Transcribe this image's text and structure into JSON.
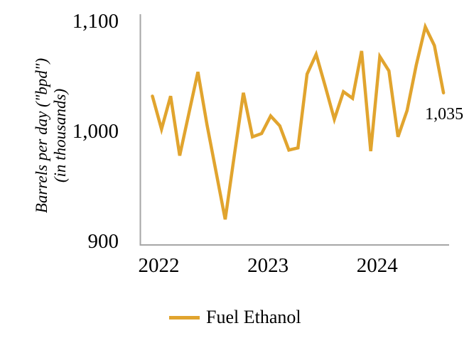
{
  "chart_data": {
    "type": "line",
    "title": "",
    "ylabel_line1": "Barrels per day (\"bpd\")",
    "ylabel_line2": "(in thousands)",
    "x": [
      "Jan 2022",
      "Feb 2022",
      "Mar 2022",
      "Apr 2022",
      "May 2022",
      "Jun 2022",
      "Jul 2022",
      "Aug 2022",
      "Sep 2022",
      "Oct 2022",
      "Nov 2022",
      "Dec 2022",
      "Jan 2023",
      "Feb 2023",
      "Mar 2023",
      "Apr 2023",
      "May 2023",
      "Jun 2023",
      "Jul 2023",
      "Aug 2023",
      "Sep 2023",
      "Oct 2023",
      "Nov 2023",
      "Dec 2023",
      "Jan 2024",
      "Feb 2024",
      "Mar 2024",
      "Apr 2024",
      "May 2024",
      "Jun 2024",
      "Jul 2024",
      "Aug 2024",
      "Sep 2024"
    ],
    "series": [
      {
        "name": "Fuel Ethanol",
        "color": "#E1A42E",
        "values": [
          1032,
          1002,
          1032,
          978,
          1016,
          1054,
          1006,
          963,
          920,
          978,
          1035,
          995,
          998,
          1014,
          1005,
          983,
          985,
          1052,
          1070,
          1041,
          1011,
          1036,
          1030,
          1073,
          982,
          1068,
          1055,
          995,
          1019,
          1060,
          1095,
          1078,
          1035
        ]
      }
    ],
    "y_ticks": [
      {
        "value": 900,
        "label": "900"
      },
      {
        "value": 1000,
        "label": "1,000"
      },
      {
        "value": 1100,
        "label": "1,100"
      }
    ],
    "x_ticks": [
      {
        "label": "2022",
        "month_index": 0
      },
      {
        "label": "2023",
        "month_index": 12
      },
      {
        "label": "2024",
        "month_index": 24
      }
    ],
    "ylim": [
      896,
      1106
    ],
    "grid": false,
    "legend_position": "bottom",
    "axis_color": "#A6A6A6",
    "annotation": {
      "text": "1,035",
      "point_index": 32
    }
  }
}
